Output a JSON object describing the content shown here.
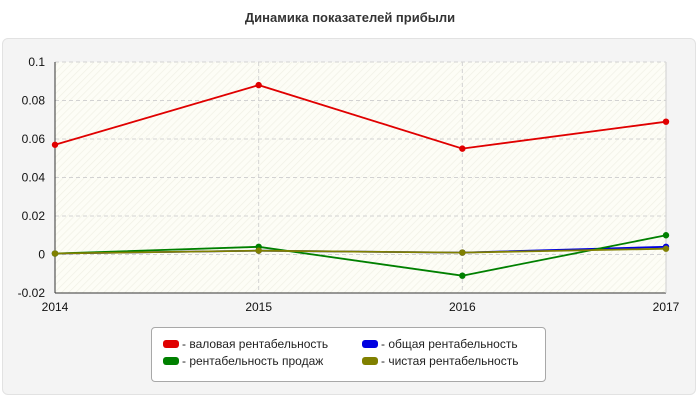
{
  "chart_data": {
    "type": "line",
    "title": "Динамика показателей прибыли",
    "xlabel": "",
    "ylabel": "",
    "x": [
      2014,
      2015,
      2016,
      2017
    ],
    "x_ticks": [
      "2014",
      "2015",
      "2016",
      "2017"
    ],
    "y_ticks": [
      "0.1",
      "0.08",
      "0.06",
      "0.04",
      "0.02",
      "0",
      "-0.02"
    ],
    "ylim": [
      -0.02,
      0.1
    ],
    "grid": true,
    "legend_position": "bottom",
    "series": [
      {
        "name": "- валовая рентабельность",
        "color": "#e00000",
        "values": [
          0.057,
          0.088,
          0.055,
          0.069
        ]
      },
      {
        "name": "- общая рентабельность",
        "color": "#0000e0",
        "values": [
          0.0005,
          0.002,
          0.001,
          0.004
        ]
      },
      {
        "name": "- рентабельность продаж",
        "color": "#008000",
        "values": [
          0.0005,
          0.004,
          -0.011,
          0.01
        ]
      },
      {
        "name": "- чистая рентабельность",
        "color": "#808000",
        "values": [
          0.0005,
          0.002,
          0.001,
          0.003
        ]
      }
    ]
  }
}
